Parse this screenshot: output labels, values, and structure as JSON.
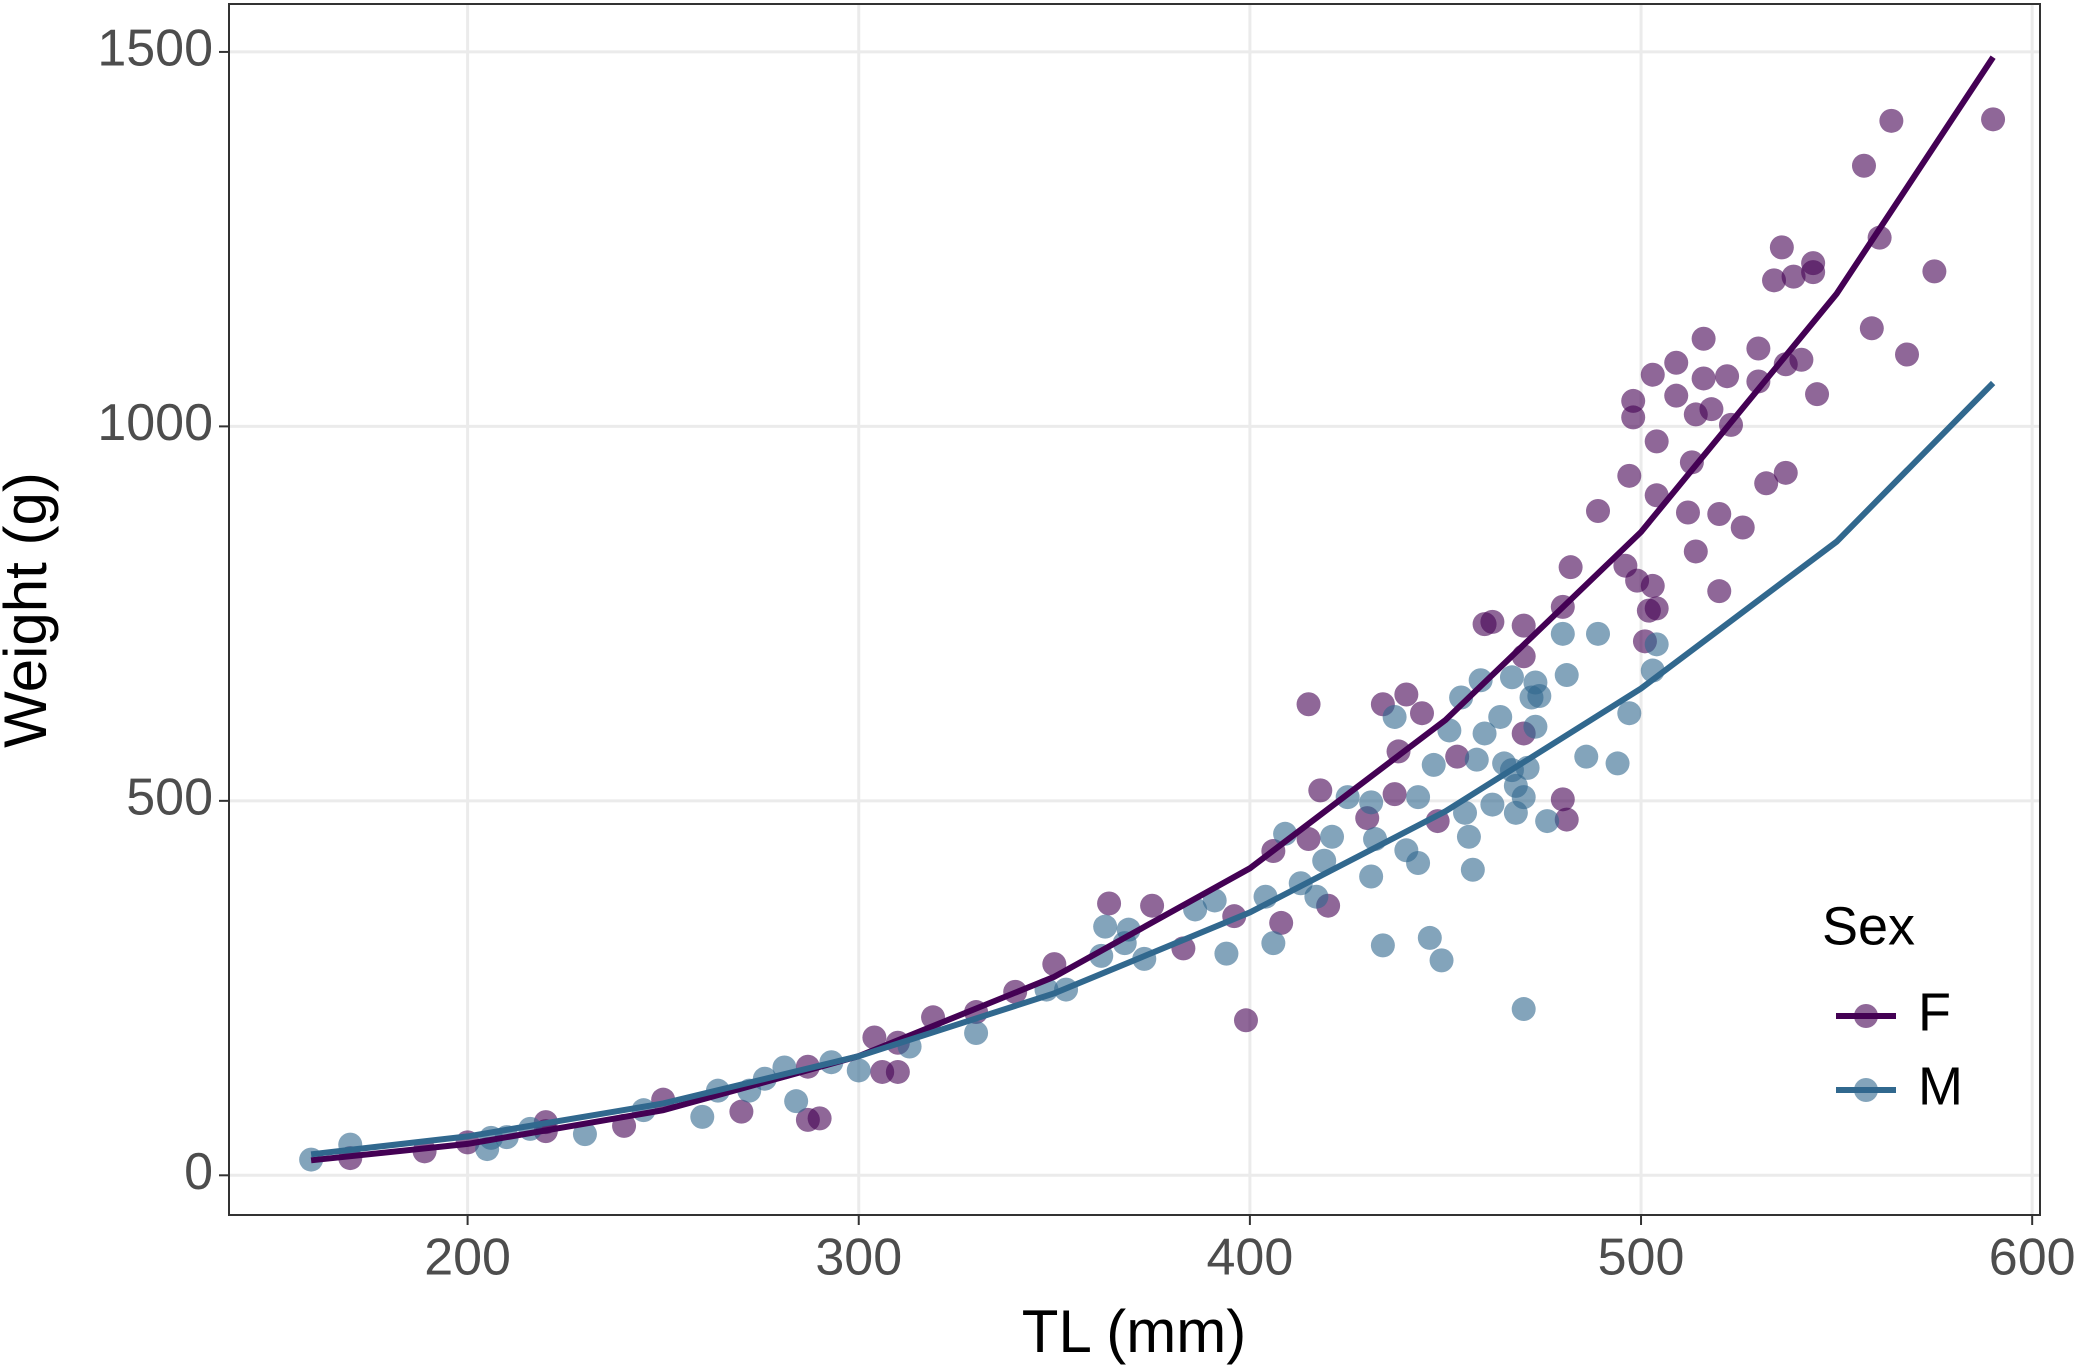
{
  "chart_data": {
    "type": "scatter",
    "x_label": "TL (mm)",
    "y_label": "Weight (g)",
    "xlim": [
      139,
      602
    ],
    "ylim": [
      -53,
      1564
    ],
    "xticks": [
      200,
      300,
      400,
      500,
      600
    ],
    "yticks": [
      0,
      500,
      1000,
      1500
    ],
    "grid": true,
    "legend_title": "Sex",
    "legend": "right",
    "series": [
      {
        "name": "F",
        "color": "#440154",
        "x": [
          170,
          189,
          200,
          220,
          220,
          240,
          250,
          270,
          287,
          290,
          287,
          304,
          306,
          310,
          310,
          319,
          330,
          340,
          350,
          364,
          375,
          383,
          396,
          399,
          406,
          408,
          415,
          418,
          420,
          415,
          430,
          434,
          437,
          438,
          440,
          444,
          448,
          453,
          460,
          462,
          470,
          470,
          470,
          480,
          481,
          480,
          482,
          489,
          496,
          497,
          498,
          498,
          499,
          501,
          502,
          503,
          504,
          503,
          504,
          504,
          509,
          509,
          512,
          513,
          514,
          514,
          516,
          516,
          518,
          520,
          520,
          523,
          522,
          526,
          530,
          530,
          532,
          534,
          536,
          537,
          537,
          539,
          541,
          544,
          544,
          545,
          557,
          559,
          561,
          564,
          568,
          575,
          590
        ],
        "values": [
          23,
          32,
          44,
          71,
          59,
          66,
          101,
          85,
          74,
          76,
          145,
          184,
          138,
          138,
          177,
          211,
          218,
          245,
          282,
          363,
          360,
          303,
          346,
          207,
          433,
          337,
          629,
          514,
          360,
          449,
          477,
          629,
          509,
          566,
          642,
          617,
          473,
          559,
          736,
          739,
          734,
          693,
          590,
          502,
          475,
          759,
          812,
          887,
          814,
          934,
          1012,
          1034,
          794,
          713,
          754,
          787,
          757,
          1069,
          908,
          980,
          1041,
          1085,
          885,
          952,
          833,
          1016,
          1117,
          1064,
          1023,
          780,
          883,
          1002,
          1067,
          865,
          1104,
          1060,
          924,
          1195,
          1239,
          938,
          1083,
          1200,
          1089,
          1218,
          1206,
          1043,
          1348,
          1131,
          1252,
          1408,
          1096,
          1207,
          1410
        ],
        "fit": {
          "x": [
            160,
            200,
            250,
            300,
            350,
            400,
            450,
            500,
            550,
            590
          ],
          "values": [
            20,
            42,
            87,
            159,
            265,
            410,
            608,
            859,
            1177,
            1493
          ]
        }
      },
      {
        "name": "M",
        "color": "#31688e",
        "x": [
          160,
          170,
          206,
          205,
          210,
          216,
          230,
          245,
          260,
          264,
          272,
          276,
          281,
          284,
          293,
          300,
          313,
          330,
          348,
          353,
          362,
          363,
          368,
          369,
          373,
          386,
          391,
          394,
          404,
          406,
          409,
          413,
          417,
          419,
          421,
          425,
          431,
          431,
          432,
          434,
          437,
          440,
          443,
          443,
          446,
          449,
          447,
          451,
          454,
          455,
          456,
          457,
          458,
          459,
          460,
          462,
          464,
          465,
          467,
          467,
          468,
          468,
          470,
          470,
          471,
          472,
          473,
          473,
          474,
          476,
          480,
          481,
          486,
          489,
          494,
          497,
          503,
          504
        ],
        "values": [
          21,
          41,
          50,
          35,
          51,
          62,
          55,
          87,
          78,
          113,
          113,
          129,
          144,
          99,
          151,
          140,
          172,
          190,
          248,
          248,
          293,
          332,
          310,
          328,
          289,
          355,
          367,
          296,
          372,
          310,
          456,
          390,
          372,
          420,
          452,
          505,
          498,
          399,
          449,
          307,
          612,
          434,
          505,
          417,
          317,
          287,
          548,
          594,
          638,
          484,
          452,
          408,
          555,
          661,
          590,
          495,
          612,
          550,
          541,
          665,
          484,
          520,
          505,
          222,
          544,
          638,
          599,
          658,
          640,
          473,
          723,
          668,
          559,
          723,
          550,
          617,
          674,
          709
        ],
        "fit": {
          "x": [
            160,
            200,
            250,
            300,
            350,
            400,
            450,
            500,
            550,
            590
          ],
          "values": [
            28,
            52,
            96,
            159,
            243,
            351,
            486,
            650,
            846,
            1058
          ]
        }
      }
    ]
  }
}
